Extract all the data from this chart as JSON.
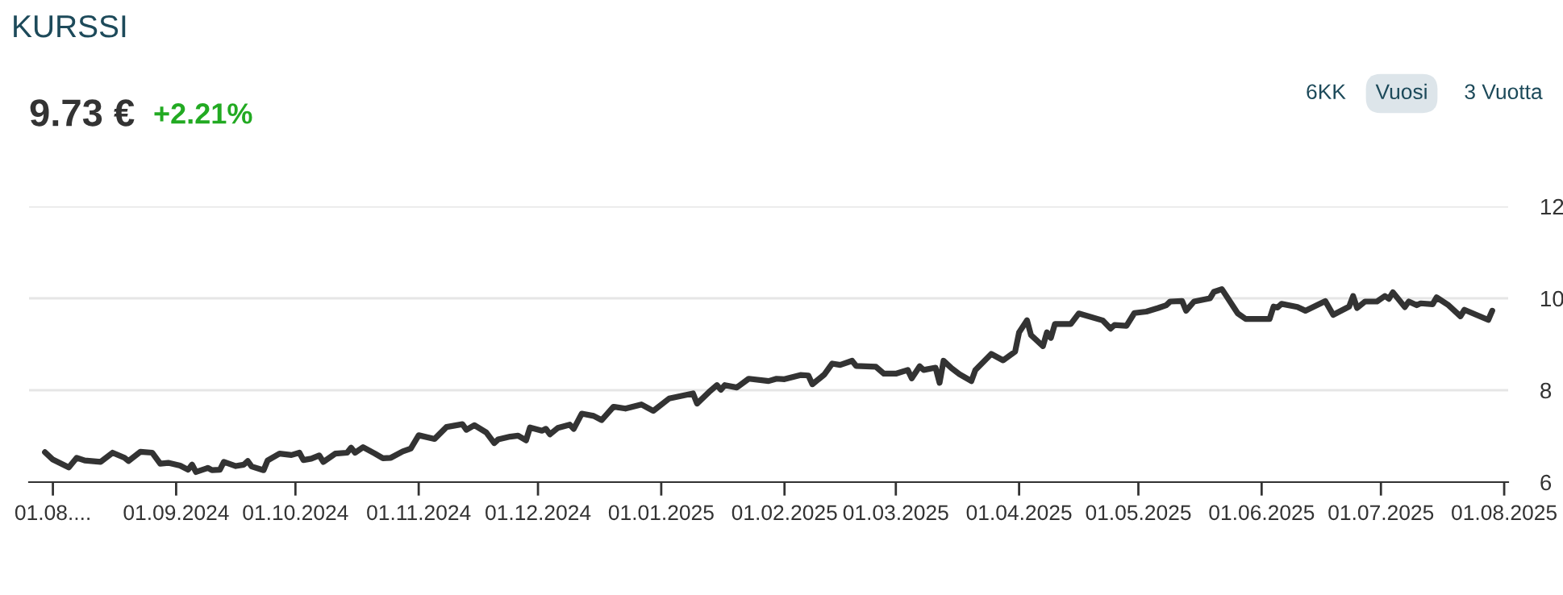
{
  "chart_data": {
    "type": "line",
    "title": "KURSSI",
    "subtitle": "9.73 €",
    "annotations": [
      "+2.21%",
      "6KK",
      "Vuosi",
      "3 Vuotta"
    ],
    "series": [
      {
        "color": "#333333",
        "x": [
          "2024-07-30",
          "2024-08-01",
          "2024-08-05",
          "2024-08-07",
          "2024-08-09",
          "2024-08-13",
          "2024-08-16",
          "2024-08-19",
          "2024-08-20",
          "2024-08-23",
          "2024-08-26",
          "2024-08-28",
          "2024-08-30",
          "2024-09-02",
          "2024-09-04",
          "2024-09-05",
          "2024-09-06",
          "2024-09-09",
          "2024-09-10",
          "2024-09-12",
          "2024-09-13",
          "2024-09-16",
          "2024-09-18",
          "2024-09-19",
          "2024-09-20",
          "2024-09-23",
          "2024-09-24",
          "2024-09-27",
          "2024-09-30",
          "2024-10-02",
          "2024-10-03",
          "2024-10-05",
          "2024-10-07",
          "2024-10-08",
          "2024-10-11",
          "2024-10-14",
          "2024-10-15",
          "2024-10-16",
          "2024-10-18",
          "2024-10-21",
          "2024-10-23",
          "2024-10-25",
          "2024-10-28",
          "2024-10-30",
          "2024-11-01",
          "2024-11-05",
          "2024-11-08",
          "2024-11-12",
          "2024-11-13",
          "2024-11-15",
          "2024-11-18",
          "2024-11-20",
          "2024-11-21",
          "2024-11-24",
          "2024-11-26",
          "2024-11-28",
          "2024-11-29",
          "2024-12-02",
          "2024-12-03",
          "2024-12-04",
          "2024-12-06",
          "2024-12-09",
          "2024-12-10",
          "2024-12-12",
          "2024-12-15",
          "2024-12-17",
          "2024-12-20",
          "2024-12-23",
          "2024-12-27",
          "2024-12-30",
          "2025-01-03",
          "2025-01-09",
          "2025-01-10",
          "2025-01-13",
          "2025-01-15",
          "2025-01-16",
          "2025-01-17",
          "2025-01-20",
          "2025-01-23",
          "2025-01-28",
          "2025-01-30",
          "2025-02-01",
          "2025-02-05",
          "2025-02-07",
          "2025-02-08",
          "2025-02-11",
          "2025-02-13",
          "2025-02-15",
          "2025-02-18",
          "2025-02-19",
          "2025-02-24",
          "2025-02-26",
          "2025-03-01",
          "2025-03-04",
          "2025-03-05",
          "2025-03-07",
          "2025-03-08",
          "2025-03-11",
          "2025-03-12",
          "2025-03-13",
          "2025-03-15",
          "2025-03-17",
          "2025-03-20",
          "2025-03-21",
          "2025-03-25",
          "2025-03-28",
          "2025-03-31",
          "2025-04-01",
          "2025-04-03",
          "2025-04-04",
          "2025-04-07",
          "2025-04-08",
          "2025-04-09",
          "2025-04-10",
          "2025-04-14",
          "2025-04-16",
          "2025-04-22",
          "2025-04-24",
          "2025-04-25",
          "2025-04-28",
          "2025-04-30",
          "2025-05-03",
          "2025-05-06",
          "2025-05-08",
          "2025-05-09",
          "2025-05-12",
          "2025-05-13",
          "2025-05-15",
          "2025-05-19",
          "2025-05-20",
          "2025-05-22",
          "2025-05-26",
          "2025-05-28",
          "2025-06-03",
          "2025-06-04",
          "2025-06-05",
          "2025-06-06",
          "2025-06-10",
          "2025-06-12",
          "2025-06-17",
          "2025-06-19",
          "2025-06-23",
          "2025-06-24",
          "2025-06-25",
          "2025-06-27",
          "2025-06-30",
          "2025-07-02",
          "2025-07-03",
          "2025-07-04",
          "2025-07-07",
          "2025-07-08",
          "2025-07-10",
          "2025-07-11",
          "2025-07-14",
          "2025-07-15",
          "2025-07-18",
          "2025-07-21",
          "2025-07-22",
          "2025-07-28",
          "2025-07-29"
        ],
        "values": [
          6.65,
          6.49,
          6.32,
          6.53,
          6.47,
          6.44,
          6.64,
          6.53,
          6.46,
          6.66,
          6.64,
          6.4,
          6.42,
          6.36,
          6.27,
          6.38,
          6.22,
          6.31,
          6.26,
          6.27,
          6.44,
          6.35,
          6.38,
          6.46,
          6.34,
          6.26,
          6.47,
          6.62,
          6.59,
          6.64,
          6.48,
          6.51,
          6.58,
          6.44,
          6.62,
          6.64,
          6.75,
          6.64,
          6.76,
          6.62,
          6.52,
          6.53,
          6.67,
          6.73,
          7.02,
          6.94,
          7.2,
          7.26,
          7.14,
          7.24,
          7.08,
          6.85,
          6.93,
          6.99,
          7.01,
          6.91,
          7.19,
          7.12,
          7.16,
          7.04,
          7.18,
          7.25,
          7.16,
          7.49,
          7.44,
          7.35,
          7.64,
          7.6,
          7.69,
          7.55,
          7.82,
          7.93,
          7.71,
          7.96,
          8.11,
          8.01,
          8.11,
          8.06,
          8.25,
          8.2,
          8.25,
          8.24,
          8.33,
          8.32,
          8.13,
          8.34,
          8.58,
          8.55,
          8.64,
          8.53,
          8.51,
          8.36,
          8.36,
          8.44,
          8.26,
          8.52,
          8.44,
          8.49,
          8.16,
          8.64,
          8.48,
          8.35,
          8.2,
          8.44,
          8.79,
          8.65,
          8.84,
          9.26,
          9.52,
          9.2,
          8.96,
          9.26,
          9.14,
          9.44,
          9.44,
          9.67,
          9.52,
          9.34,
          9.42,
          9.4,
          9.68,
          9.71,
          9.79,
          9.85,
          9.93,
          9.94,
          9.73,
          9.93,
          10.0,
          10.14,
          10.2,
          9.67,
          9.55,
          9.55,
          9.82,
          9.8,
          9.88,
          9.81,
          9.73,
          9.94,
          9.64,
          9.82,
          10.05,
          9.79,
          9.93,
          9.93,
          10.05,
          9.99,
          10.13,
          9.81,
          9.93,
          9.85,
          9.89,
          9.87,
          10.02,
          9.85,
          9.61,
          9.75,
          9.53,
          9.73
        ]
      }
    ],
    "xlim": [
      "2024-07-26",
      "2025-08-02"
    ],
    "xticks": [
      {
        "value": "2024-08-01",
        "label": "01.08...."
      },
      {
        "value": "2024-09-01",
        "label": "01.09.2024"
      },
      {
        "value": "2024-10-01",
        "label": "01.10.2024"
      },
      {
        "value": "2024-11-01",
        "label": "01.11.2024"
      },
      {
        "value": "2024-12-01",
        "label": "01.12.2024"
      },
      {
        "value": "2025-01-01",
        "label": "01.01.2025"
      },
      {
        "value": "2025-02-01",
        "label": "01.02.2025"
      },
      {
        "value": "2025-03-01",
        "label": "01.03.2025"
      },
      {
        "value": "2025-04-01",
        "label": "01.04.2025"
      },
      {
        "value": "2025-05-01",
        "label": "01.05.2025"
      },
      {
        "value": "2025-06-01",
        "label": "01.06.2025"
      },
      {
        "value": "2025-07-01",
        "label": "01.07.2025"
      },
      {
        "value": "2025-08-01",
        "label": "01.08.2025"
      }
    ],
    "ylim": [
      6,
      12
    ],
    "yticks": [
      6,
      8,
      10,
      12
    ],
    "grid": "y",
    "legend": false,
    "marker": "none",
    "line_style": "solid"
  }
}
